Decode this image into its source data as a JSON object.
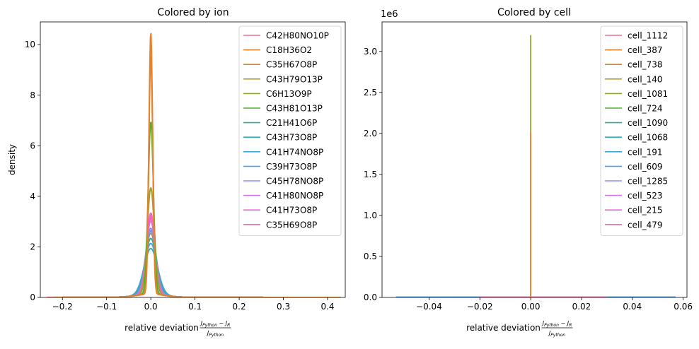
{
  "chart_data": [
    {
      "type": "line",
      "title": "Colored by ion",
      "xlabel": "relative deviation",
      "xlabel_formula": {
        "num": "J",
        "num_sub": "Python",
        "minus": " − ",
        "num2": "J",
        "num2_sub": "R",
        "den": "J",
        "den_sub": "Python"
      },
      "ylabel": "density",
      "xlim": [
        -0.25,
        0.44
      ],
      "ylim": [
        0,
        10.9
      ],
      "xticks": [
        -0.2,
        -0.1,
        0.0,
        0.1,
        0.2,
        0.3,
        0.4
      ],
      "xtick_labels": [
        "−0.2",
        "−0.1",
        "0.0",
        "0.1",
        "0.2",
        "0.3",
        "0.4"
      ],
      "yticks": [
        0,
        2,
        4,
        6,
        8,
        10
      ],
      "ytick_labels": [
        "0",
        "2",
        "4",
        "6",
        "8",
        "10"
      ],
      "legend_position": "top-right",
      "series": [
        {
          "name": "C42H80NO10P",
          "color": "#f77189",
          "peak": 3.0,
          "width": 0.01,
          "xmin": -0.235,
          "xmax": 0.42
        },
        {
          "name": "C18H36O2",
          "color": "#e8812f",
          "peak": 10.35,
          "width": 0.0042,
          "xmin": -0.2,
          "xmax": 0.4
        },
        {
          "name": "C35H67O8P",
          "color": "#d08c32",
          "peak": 9.4,
          "width": 0.0046,
          "xmin": -0.22,
          "xmax": 0.43
        },
        {
          "name": "C43H79O13P",
          "color": "#bb9832",
          "peak": 2.4,
          "width": 0.012,
          "xmin": -0.18,
          "xmax": 0.3
        },
        {
          "name": "C6H13O9P",
          "color": "#97a431",
          "peak": 4.2,
          "width": 0.008,
          "xmin": -0.2,
          "xmax": 0.35
        },
        {
          "name": "C43H81O13P",
          "color": "#50b131",
          "peak": 6.8,
          "width": 0.006,
          "xmin": -0.15,
          "xmax": 0.3
        },
        {
          "name": "C21H41O6P",
          "color": "#34ae91",
          "peak": 2.2,
          "width": 0.013,
          "xmin": -0.2,
          "xmax": 0.35
        },
        {
          "name": "C43H73O8P",
          "color": "#37abb4",
          "peak": 1.8,
          "width": 0.015,
          "xmin": -0.2,
          "xmax": 0.3
        },
        {
          "name": "C41H74NO8P",
          "color": "#3aa6da",
          "peak": 2.5,
          "width": 0.012,
          "xmin": -0.2,
          "xmax": 0.3
        },
        {
          "name": "C39H73O8P",
          "color": "#4aa0f3",
          "peak": 2.0,
          "width": 0.014,
          "xmin": -0.2,
          "xmax": 0.3
        },
        {
          "name": "C45H78NO8P",
          "color": "#8e8ef4",
          "peak": 2.6,
          "width": 0.011,
          "xmin": -0.2,
          "xmax": 0.3
        },
        {
          "name": "C41H80NO8P",
          "color": "#cc79f4",
          "peak": 2.9,
          "width": 0.01,
          "xmin": -0.2,
          "xmax": 0.3
        },
        {
          "name": "C41H73O8P",
          "color": "#f461dd",
          "peak": 3.2,
          "width": 0.009,
          "xmin": -0.2,
          "xmax": 0.3
        },
        {
          "name": "C35H69O8P",
          "color": "#f66bad",
          "peak": 3.1,
          "width": 0.0095,
          "xmin": -0.2,
          "xmax": 0.3
        }
      ]
    },
    {
      "type": "line",
      "title": "Colored by cell",
      "xlabel": "relative deviation",
      "xlabel_formula": {
        "num": "J",
        "num_sub": "Python",
        "minus": " − ",
        "num2": "J",
        "num2_sub": "R",
        "den": "J",
        "den_sub": "Python"
      },
      "ylabel": "",
      "offset_text": "1e6",
      "xlim": [
        -0.0585,
        0.0615
      ],
      "ylim": [
        0,
        3.36
      ],
      "xticks": [
        -0.04,
        -0.02,
        0.0,
        0.02,
        0.04,
        0.06
      ],
      "xtick_labels": [
        "−0.04",
        "−0.02",
        "0.00",
        "0.02",
        "0.04",
        "0.06"
      ],
      "yticks": [
        0.0,
        0.5,
        1.0,
        1.5,
        2.0,
        2.5,
        3.0
      ],
      "ytick_labels": [
        "0.0",
        "0.5",
        "1.0",
        "1.5",
        "2.0",
        "2.5",
        "3.0"
      ],
      "legend_position": "top-right",
      "spikes": [
        {
          "series": "cell_1081",
          "x": 0.0,
          "y": 3.2
        },
        {
          "series": "cell_387",
          "x": 0.0,
          "y": 2.02
        }
      ],
      "series": [
        {
          "name": "cell_1112",
          "color": "#f77189",
          "xmin": -0.053,
          "xmax": 0.057
        },
        {
          "name": "cell_387",
          "color": "#e8812f",
          "xmin": -0.03,
          "xmax": 0.04
        },
        {
          "name": "cell_738",
          "color": "#d08c32",
          "xmin": -0.02,
          "xmax": 0.03
        },
        {
          "name": "cell_140",
          "color": "#bb9832",
          "xmin": -0.02,
          "xmax": 0.03
        },
        {
          "name": "cell_1081",
          "color": "#97a431",
          "xmin": -0.034,
          "xmax": 0.05
        },
        {
          "name": "cell_724",
          "color": "#50b131",
          "xmin": -0.02,
          "xmax": 0.03
        },
        {
          "name": "cell_1090",
          "color": "#34ae91",
          "xmin": -0.02,
          "xmax": 0.03
        },
        {
          "name": "cell_1068",
          "color": "#37abb4",
          "xmin": -0.02,
          "xmax": 0.03
        },
        {
          "name": "cell_191",
          "color": "#3aa6da",
          "xmin": -0.02,
          "xmax": 0.03
        },
        {
          "name": "cell_609",
          "color": "#4aa0f3",
          "xmin": -0.053,
          "xmax": 0.057
        },
        {
          "name": "cell_1285",
          "color": "#8e8ef4",
          "xmin": -0.02,
          "xmax": 0.03
        },
        {
          "name": "cell_523",
          "color": "#cc79f4",
          "xmin": -0.02,
          "xmax": 0.03
        },
        {
          "name": "cell_215",
          "color": "#f461dd",
          "xmin": -0.02,
          "xmax": 0.03
        },
        {
          "name": "cell_479",
          "color": "#f66bad",
          "xmin": -0.02,
          "xmax": 0.03
        }
      ]
    }
  ]
}
